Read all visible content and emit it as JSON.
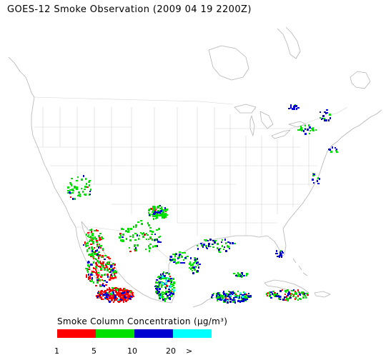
{
  "title": "GOES-12 Smoke Observation (2009 04 19  2200Z)",
  "legend": {
    "title_prefix": "Smoke Column Concentration (",
    "title_unit": "μg/m³",
    "title_suffix": ")",
    "colors": [
      "#ff0000",
      "#00e000",
      "#0000d0",
      "#00ffff"
    ],
    "ticks": [
      "1",
      "5",
      "10",
      "20",
      ">"
    ]
  },
  "map": {
    "land_color": "#ffffff",
    "coast_color": "#b4b4b4",
    "border_color": "#d2d2d2"
  }
}
